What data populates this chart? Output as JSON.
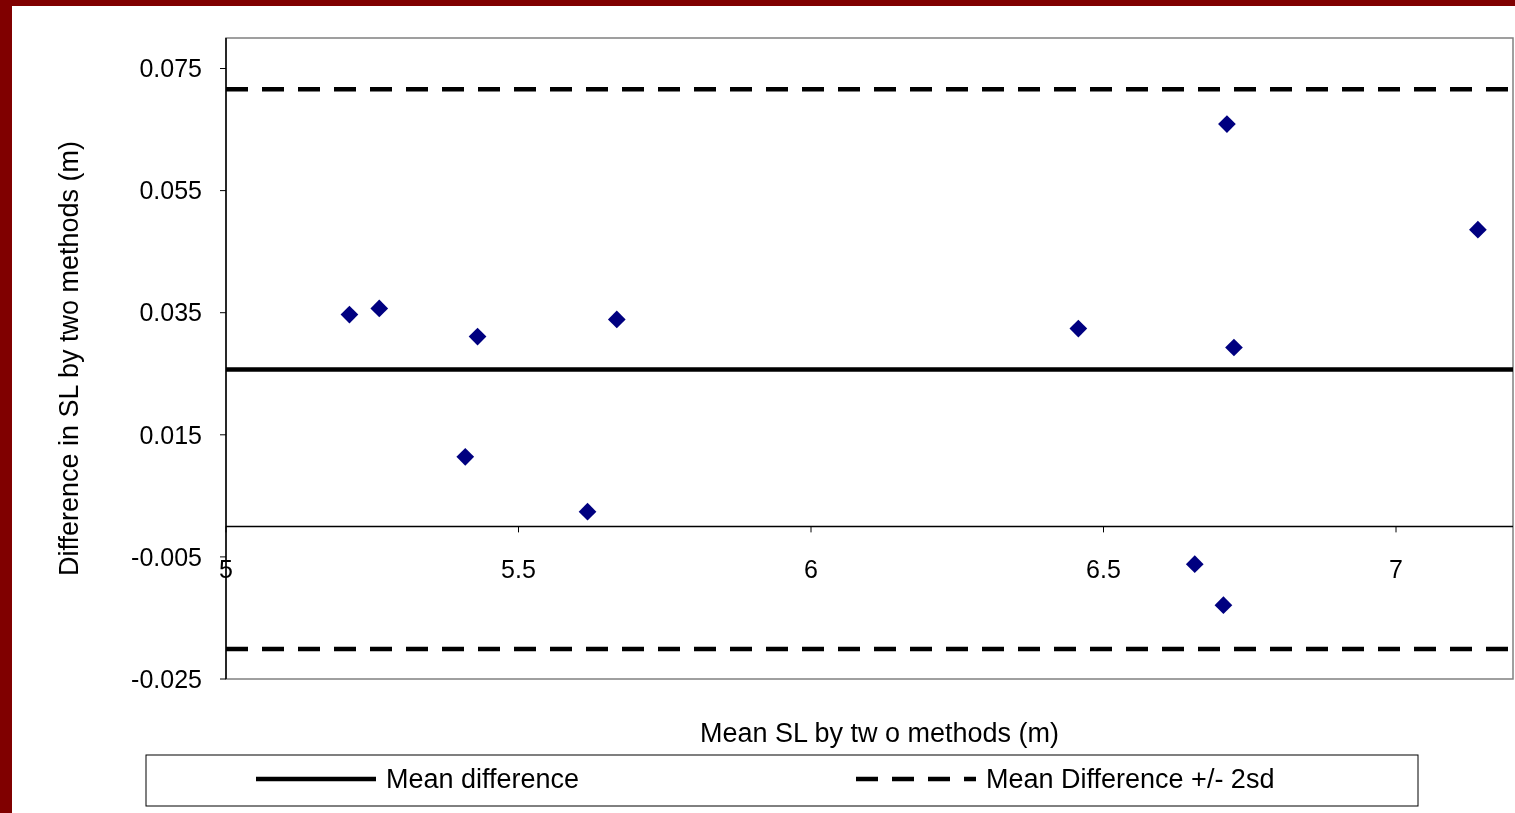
{
  "chart_data": {
    "type": "scatter",
    "xlabel": "Mean SL by tw o methods (m)",
    "ylabel": "Difference in SL by two methods (m)",
    "xlim": [
      5,
      7.2
    ],
    "xticks": [
      5,
      5.5,
      6,
      6.5,
      7
    ],
    "ylim": [
      -0.025,
      0.08
    ],
    "yticks": [
      -0.025,
      -0.005,
      0.015,
      0.035,
      0.055,
      0.075
    ],
    "series": [
      {
        "color": "#000080",
        "x": [
          5.211,
          5.262,
          5.43,
          5.668,
          5.409,
          5.618,
          6.457,
          6.723,
          6.711,
          7.14,
          6.656,
          6.705
        ],
        "values": [
          0.0347,
          0.0357,
          0.0311,
          0.0339,
          0.0114,
          0.0024,
          0.0324,
          0.0293,
          0.0659,
          0.0486,
          -0.0062,
          -0.0129
        ]
      }
    ],
    "ref_lines": [
      {
        "axis": "y",
        "value": 0.0257,
        "label": "Mean difference",
        "line_style": "solid",
        "color": "#000000"
      },
      {
        "axis": "y",
        "value": 0.0716,
        "label": "Mean Difference +/- 2sd",
        "line_style": "dashed",
        "color": "#000000"
      },
      {
        "axis": "y",
        "value": -0.0201,
        "line_style": "dashed",
        "color": "#000000"
      }
    ],
    "marker": "diamond",
    "grid": false,
    "legend": "bottom"
  }
}
